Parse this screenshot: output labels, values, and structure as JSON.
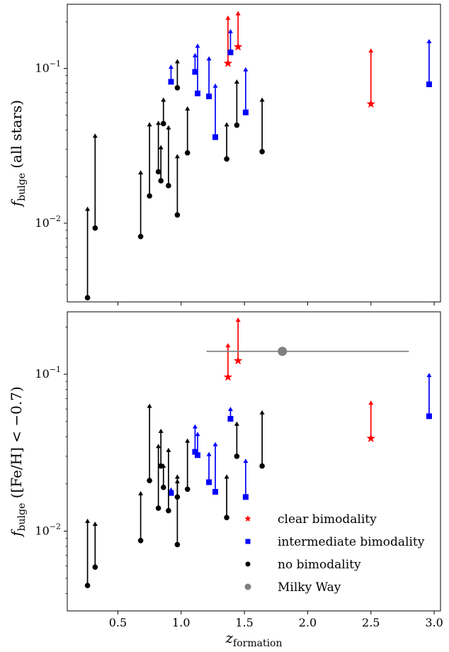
{
  "chart_data": [
    {
      "type": "scatter",
      "yscale": "log",
      "ylabel": {
        "main": "f",
        "sub": "bulge",
        "rest": " (all stars)"
      },
      "xlim": [
        0.1,
        3.05
      ],
      "ylim": [
        0.0031,
        0.26
      ],
      "yticks": [
        {
          "value": 0.01,
          "base": "10",
          "exp": "−2"
        },
        {
          "value": 0.1,
          "base": "10",
          "exp": "−1"
        }
      ],
      "series": [
        {
          "marker": "star",
          "color": "#ff0000",
          "points": [
            {
              "x": 1.37,
              "y": 0.108,
              "upper": 0.22
            },
            {
              "x": 1.45,
              "y": 0.138,
              "upper": 0.235
            },
            {
              "x": 2.5,
              "y": 0.059,
              "upper": 0.135
            }
          ]
        },
        {
          "marker": "square",
          "color": "#0000ff",
          "points": [
            {
              "x": 0.92,
              "y": 0.082,
              "upper": 0.106
            },
            {
              "x": 1.11,
              "y": 0.095,
              "upper": 0.126
            },
            {
              "x": 1.13,
              "y": 0.069,
              "upper": 0.145
            },
            {
              "x": 1.22,
              "y": 0.066,
              "upper": 0.12
            },
            {
              "x": 1.27,
              "y": 0.036,
              "upper": 0.08
            },
            {
              "x": 1.39,
              "y": 0.127,
              "upper": 0.18
            },
            {
              "x": 1.51,
              "y": 0.052,
              "upper": 0.102
            },
            {
              "x": 2.96,
              "y": 0.079,
              "upper": 0.155
            }
          ]
        },
        {
          "marker": "circle",
          "color": "#000000",
          "points": [
            {
              "x": 0.26,
              "y": 0.0033,
              "upper": 0.0128
            },
            {
              "x": 0.32,
              "y": 0.0093,
              "upper": 0.038
            },
            {
              "x": 0.68,
              "y": 0.0082,
              "upper": 0.022
            },
            {
              "x": 0.75,
              "y": 0.015,
              "upper": 0.045
            },
            {
              "x": 0.82,
              "y": 0.0215,
              "upper": 0.046
            },
            {
              "x": 0.84,
              "y": 0.0188,
              "upper": 0.032
            },
            {
              "x": 0.86,
              "y": 0.044,
              "upper": 0.065
            },
            {
              "x": 0.9,
              "y": 0.0175,
              "upper": 0.043
            },
            {
              "x": 0.97,
              "y": 0.075,
              "upper": 0.115
            },
            {
              "x": 0.97,
              "y": 0.0113,
              "upper": 0.028
            },
            {
              "x": 1.05,
              "y": 0.0285,
              "upper": 0.057
            },
            {
              "x": 1.36,
              "y": 0.026,
              "upper": 0.045
            },
            {
              "x": 1.44,
              "y": 0.043,
              "upper": 0.085
            },
            {
              "x": 1.64,
              "y": 0.029,
              "upper": 0.065
            }
          ]
        }
      ]
    },
    {
      "type": "scatter",
      "yscale": "log",
      "ylabel": {
        "main": "f",
        "sub": "bulge",
        "rest": " ([Fe/H] < −0.7)"
      },
      "xlabel": {
        "main": "z",
        "sub": "formation"
      },
      "xlim": [
        0.1,
        3.05
      ],
      "ylim": [
        0.0031,
        0.25
      ],
      "xticks": [
        0.5,
        1.0,
        1.5,
        2.0,
        2.5,
        3.0
      ],
      "xtick_labels": [
        "0.5",
        "1.0",
        "1.5",
        "2.0",
        "2.5",
        "3.0"
      ],
      "yticks": [
        {
          "value": 0.01,
          "base": "10",
          "exp": "−2"
        },
        {
          "value": 0.1,
          "base": "10",
          "exp": "−1"
        }
      ],
      "series": [
        {
          "name": "clear bimodality",
          "marker": "star",
          "color": "#ff0000",
          "points": [
            {
              "x": 1.37,
              "y": 0.096,
              "upper": 0.158
            },
            {
              "x": 1.45,
              "y": 0.122,
              "upper": 0.23
            },
            {
              "x": 2.5,
              "y": 0.039,
              "upper": 0.068
            }
          ]
        },
        {
          "name": "intermediate bimodality",
          "marker": "square",
          "color": "#0000ff",
          "points": [
            {
              "x": 0.92,
              "y": 0.0175,
              "upper": 0.019
            },
            {
              "x": 1.11,
              "y": 0.032,
              "upper": 0.048
            },
            {
              "x": 1.13,
              "y": 0.0305,
              "upper": 0.043
            },
            {
              "x": 1.22,
              "y": 0.0205,
              "upper": 0.032
            },
            {
              "x": 1.27,
              "y": 0.0178,
              "upper": 0.037
            },
            {
              "x": 1.39,
              "y": 0.052,
              "upper": 0.062
            },
            {
              "x": 1.51,
              "y": 0.0165,
              "upper": 0.029
            },
            {
              "x": 2.96,
              "y": 0.054,
              "upper": 0.102
            }
          ]
        },
        {
          "name": "no bimodality",
          "marker": "circle",
          "color": "#000000",
          "points": [
            {
              "x": 0.26,
              "y": 0.0045,
              "upper": 0.012
            },
            {
              "x": 0.32,
              "y": 0.0059,
              "upper": 0.0115
            },
            {
              "x": 0.68,
              "y": 0.0087,
              "upper": 0.018
            },
            {
              "x": 0.75,
              "y": 0.021,
              "upper": 0.065
            },
            {
              "x": 0.82,
              "y": 0.014,
              "upper": 0.036
            },
            {
              "x": 0.84,
              "y": 0.026,
              "upper": 0.045
            },
            {
              "x": 0.86,
              "y": 0.019,
              "upper": 0.027
            },
            {
              "x": 0.9,
              "y": 0.0135,
              "upper": 0.034
            },
            {
              "x": 0.97,
              "y": 0.0165,
              "upper": 0.023
            },
            {
              "x": 0.97,
              "y": 0.0082,
              "upper": 0.0215
            },
            {
              "x": 1.05,
              "y": 0.0185,
              "upper": 0.039
            },
            {
              "x": 1.36,
              "y": 0.0122,
              "upper": 0.023
            },
            {
              "x": 1.44,
              "y": 0.03,
              "upper": 0.05
            },
            {
              "x": 1.64,
              "y": 0.026,
              "upper": 0.059
            }
          ]
        },
        {
          "name": "Milky Way",
          "marker": "bigcircle",
          "color": "#808080",
          "points": [
            {
              "x": 1.8,
              "y": 0.14,
              "xerr": [
                1.2,
                2.8
              ]
            }
          ]
        }
      ],
      "legend": {
        "position": "lower-right",
        "entries": [
          {
            "label": "clear bimodality",
            "marker": "star",
            "color": "#ff0000"
          },
          {
            "label": "intermediate bimodality",
            "marker": "square",
            "color": "#0000ff"
          },
          {
            "label": "no bimodality",
            "marker": "circle",
            "color": "#000000"
          },
          {
            "label": "Milky Way",
            "marker": "circle",
            "color": "#808080"
          }
        ]
      }
    }
  ]
}
